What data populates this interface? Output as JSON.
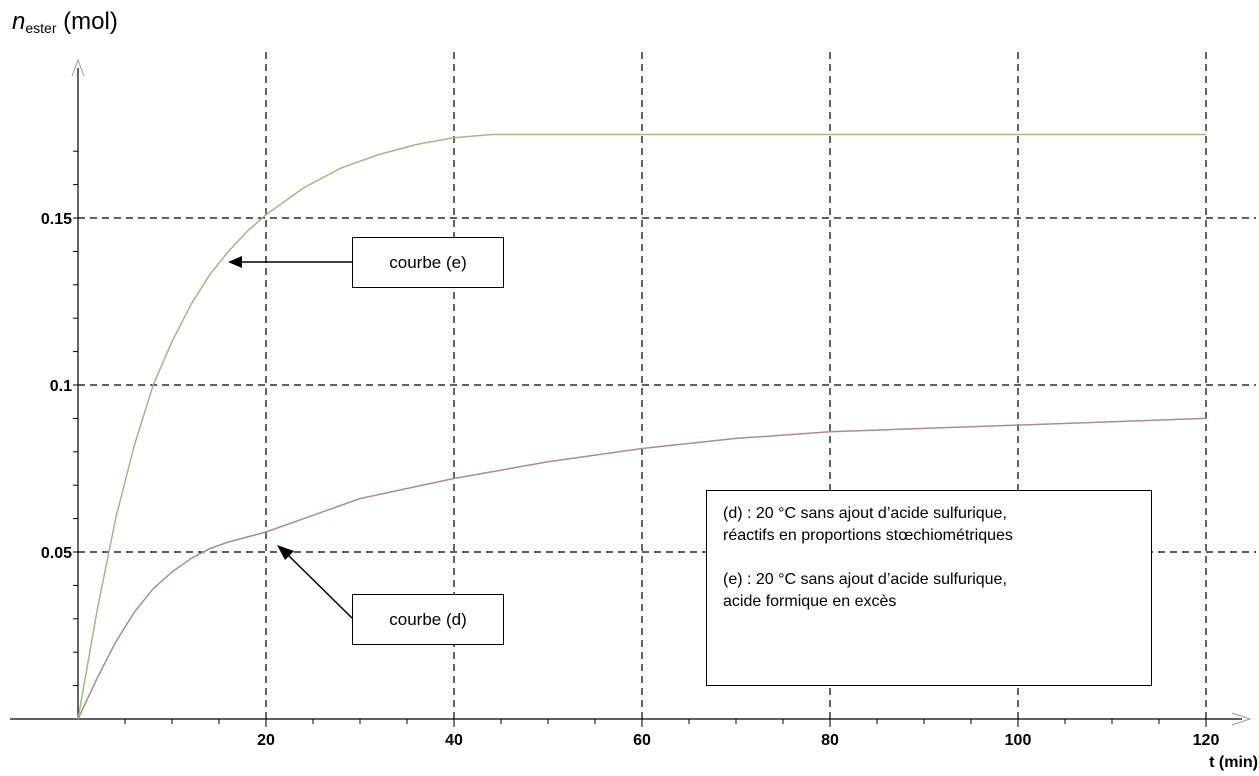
{
  "chart_data": {
    "type": "line",
    "ylabel_main": "n",
    "ylabel_sub": "ester",
    "ylabel_unit": "(mol)",
    "xlabel": "t (min)",
    "xlim": [
      0,
      120
    ],
    "ylim": [
      0,
      0.175
    ],
    "grid": true,
    "x_ticks": [
      20,
      40,
      60,
      80,
      100,
      120
    ],
    "y_ticks": [
      0.05,
      0.1,
      0.15
    ],
    "y_tick_labels": [
      "0.05",
      "0.1",
      "0.15"
    ],
    "series": [
      {
        "id": "e",
        "color": "#a8b48a",
        "x": [
          0,
          2,
          4,
          6,
          8,
          10,
          12,
          14,
          16,
          18,
          20,
          24,
          28,
          32,
          36,
          40,
          44,
          50,
          60,
          80,
          100,
          120
        ],
        "values": [
          0,
          0.032,
          0.06,
          0.082,
          0.1,
          0.113,
          0.124,
          0.133,
          0.14,
          0.146,
          0.151,
          0.159,
          0.165,
          0.169,
          0.172,
          0.174,
          0.175,
          0.175,
          0.175,
          0.175,
          0.175,
          0.175
        ]
      },
      {
        "id": "d",
        "color": "#b08a8e",
        "x": [
          0,
          2,
          4,
          6,
          8,
          10,
          12,
          14,
          16,
          20,
          25,
          30,
          35,
          40,
          50,
          60,
          70,
          80,
          90,
          100,
          110,
          120
        ],
        "values": [
          0,
          0.012,
          0.023,
          0.032,
          0.039,
          0.044,
          0.048,
          0.051,
          0.053,
          0.056,
          0.061,
          0.066,
          0.069,
          0.072,
          0.077,
          0.081,
          0.084,
          0.086,
          0.087,
          0.088,
          0.089,
          0.09
        ]
      }
    ],
    "annotations": {
      "courbe_e": "courbe (e)",
      "courbe_d": "courbe (d)"
    },
    "legend": {
      "d_line1": "(d) : 20 °C sans ajout d’acide sulfurique,",
      "d_line2": "réactifs en proportions stœchiométriques",
      "e_line1": "(e) : 20 °C sans ajout d’acide sulfurique,",
      "e_line2": "acide formique en excès"
    }
  }
}
